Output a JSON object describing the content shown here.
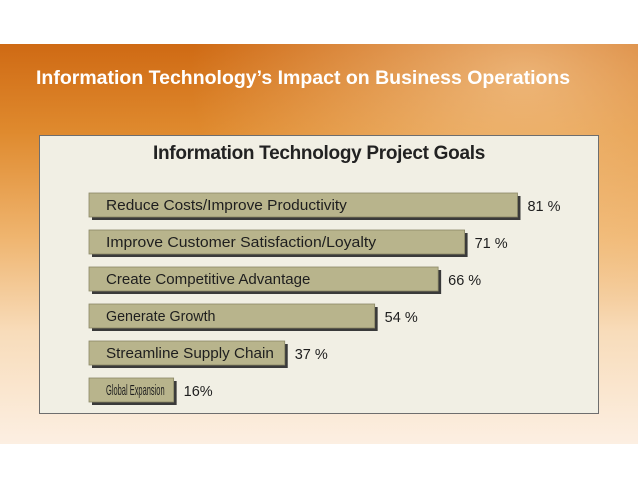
{
  "slide": {
    "title": "Information Technology’s Impact on Business Operations"
  },
  "colors": {
    "bar_fill": "#b8b48c",
    "bar_shadow": "#3a3a3a",
    "panel_bg": "#f1efe4",
    "title_text": "#ffffff",
    "accent_orange": "#d9741d"
  },
  "chart_data": {
    "type": "bar",
    "orientation": "horizontal",
    "title": "Information Technology Project Goals",
    "categories": [
      "Reduce Costs/Improve Productivity",
      "Improve Customer Satisfaction/Loyalty",
      "Create Competitive Advantage",
      "Generate Growth",
      "Streamline Supply Chain",
      "Global Expansion"
    ],
    "values": [
      81,
      71,
      66,
      54,
      37,
      16
    ],
    "value_labels": [
      "81 %",
      "71 %",
      "66 %",
      "54 %",
      "37 %",
      "16%"
    ],
    "xlim": [
      0,
      100
    ],
    "grid": false,
    "legend": "none"
  }
}
